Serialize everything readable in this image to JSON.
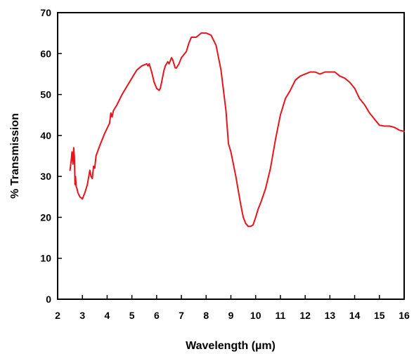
{
  "chart_data": {
    "type": "line",
    "title": "",
    "xlabel": "Wavelength (µm)",
    "ylabel": "% Transmission",
    "xlim": [
      2,
      16
    ],
    "ylim": [
      0,
      70
    ],
    "xticks": [
      "2",
      "3",
      "4",
      "5",
      "6",
      "7",
      "8",
      "9",
      "10",
      "11",
      "12",
      "13",
      "14",
      "15",
      "16"
    ],
    "yticks": [
      "0",
      "10",
      "20",
      "30",
      "40",
      "50",
      "60",
      "70"
    ],
    "grid": false,
    "legend": "none",
    "line_color": "#e8141b",
    "series": [
      {
        "x": [
          2.5,
          2.55,
          2.58,
          2.62,
          2.65,
          2.68,
          2.7,
          2.72,
          2.75,
          2.78,
          2.82,
          2.9,
          3.0,
          3.1,
          3.2,
          3.3,
          3.35,
          3.4,
          3.45,
          3.5,
          3.55,
          3.7,
          3.9,
          4.1,
          4.15,
          4.2,
          4.25,
          4.4,
          4.6,
          4.8,
          5.0,
          5.2,
          5.4,
          5.6,
          5.65,
          5.7,
          5.8,
          5.9,
          6.0,
          6.1,
          6.15,
          6.2,
          6.3,
          6.35,
          6.4,
          6.45,
          6.5,
          6.6,
          6.65,
          6.7,
          6.75,
          6.8,
          6.9,
          7.0,
          7.2,
          7.3,
          7.4,
          7.6,
          7.8,
          8.0,
          8.2,
          8.4,
          8.6,
          8.8,
          8.9,
          9.0,
          9.2,
          9.4,
          9.5,
          9.6,
          9.7,
          9.8,
          9.9,
          10.0,
          10.1,
          10.2,
          10.4,
          10.6,
          10.8,
          11.0,
          11.2,
          11.4,
          11.6,
          11.8,
          12.0,
          12.2,
          12.4,
          12.6,
          12.8,
          13.0,
          13.2,
          13.4,
          13.6,
          13.8,
          14.0,
          14.2,
          14.4,
          14.6,
          14.8,
          15.0,
          15.2,
          15.4,
          15.6,
          15.8,
          16.0
        ],
        "y": [
          31.5,
          34.0,
          36.0,
          33.0,
          37.0,
          34.5,
          28.0,
          30.0,
          27.5,
          27.0,
          26.0,
          25.0,
          24.5,
          26.0,
          28.0,
          31.5,
          30.0,
          29.5,
          32.5,
          32.0,
          35.0,
          37.5,
          40.5,
          43.0,
          45.5,
          44.5,
          46.0,
          47.5,
          50.0,
          52.0,
          54.0,
          56.0,
          57.0,
          57.5,
          57.0,
          57.5,
          55.5,
          53.0,
          51.5,
          51.0,
          51.5,
          53.0,
          56.0,
          57.0,
          57.5,
          58.0,
          57.5,
          59.0,
          58.5,
          57.5,
          56.5,
          56.5,
          57.5,
          59.0,
          60.5,
          62.5,
          64.0,
          64.0,
          65.0,
          65.0,
          64.5,
          62.0,
          56.0,
          46.0,
          38.0,
          36.0,
          30.0,
          23.0,
          20.0,
          18.5,
          17.8,
          17.8,
          18.2,
          20.0,
          22.0,
          23.5,
          27.0,
          32.0,
          39.0,
          45.0,
          49.0,
          51.0,
          53.5,
          54.5,
          55.0,
          55.5,
          55.5,
          55.0,
          55.5,
          55.5,
          55.5,
          54.5,
          54.0,
          53.0,
          51.5,
          49.0,
          47.5,
          45.5,
          44.0,
          42.5,
          42.3,
          42.3,
          42.0,
          41.3,
          41.0
        ]
      }
    ]
  }
}
